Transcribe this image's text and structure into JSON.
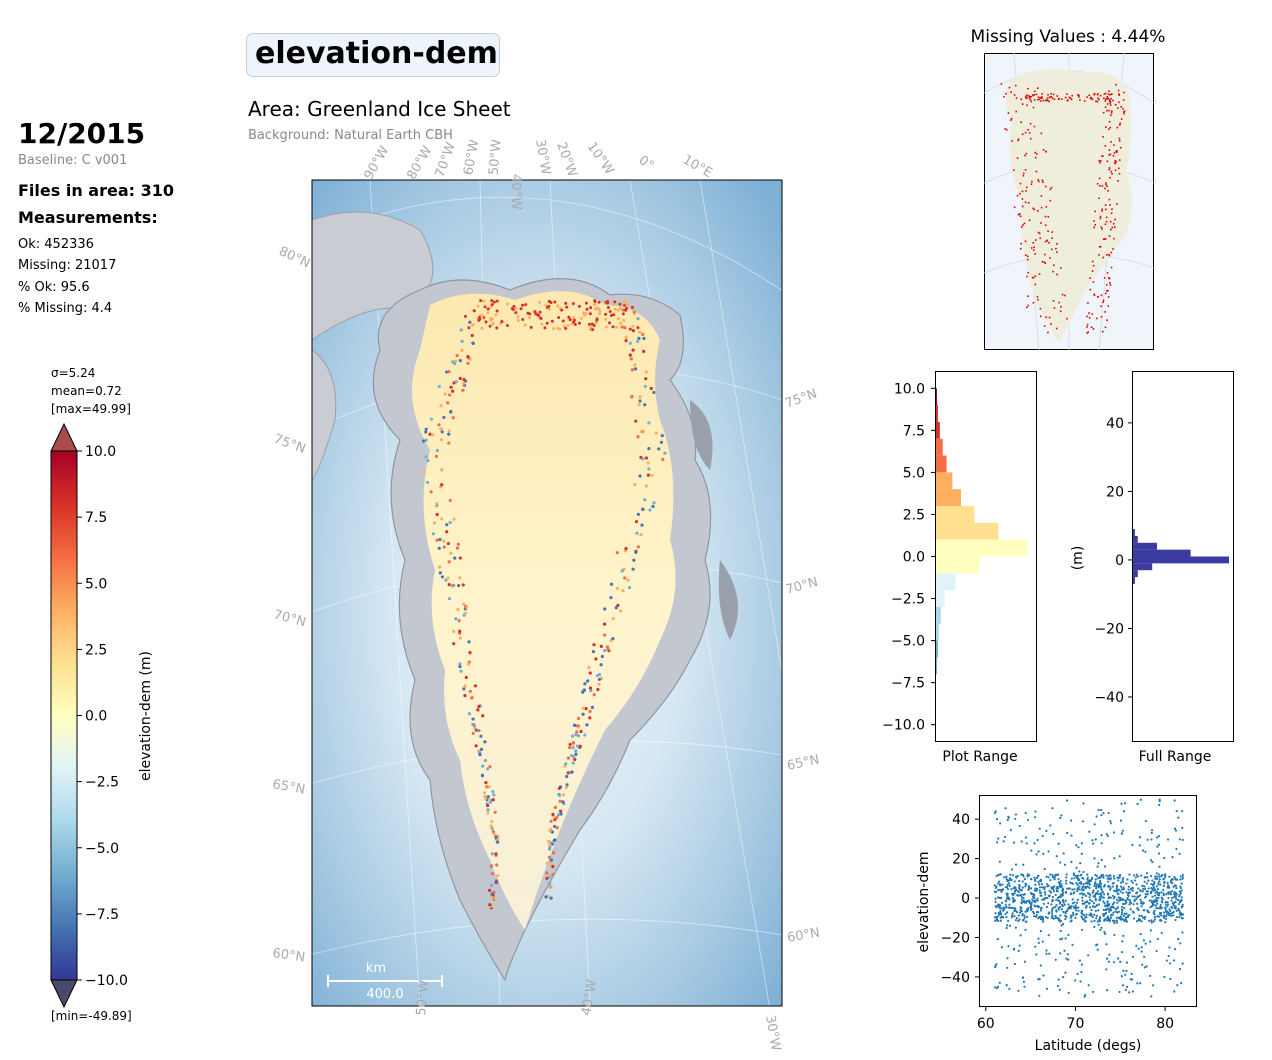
{
  "header": {
    "title": "elevation-dem",
    "date": "12/2015",
    "baseline": "Baseline: C v001",
    "files_in_area": "Files in area: 310",
    "measurements_label": "Measurements:",
    "stats": [
      "Ok: 452336",
      "Missing: 21017",
      "% Ok: 95.6",
      "% Missing: 4.4"
    ],
    "area": "Area: Greenland Ice Sheet",
    "background": "Background: Natural Earth CBH"
  },
  "colorbar": {
    "label": "elevation-dem (m)",
    "stats": [
      "σ=5.24",
      "mean=0.72",
      "[max=49.99]"
    ],
    "min_label": "[min=-49.89]",
    "ticks": [
      "10.0",
      "7.5",
      "5.0",
      "2.5",
      "0.0",
      "−2.5",
      "−5.0",
      "−7.5",
      "−10.0"
    ],
    "colors": [
      "#a50026",
      "#d73027",
      "#f46d43",
      "#fdae61",
      "#fee090",
      "#ffffbf",
      "#e0f3f8",
      "#abd9e9",
      "#74add1",
      "#4575b4",
      "#313695"
    ]
  },
  "map": {
    "lon_top": [
      "90°W",
      "80°W",
      "70°W",
      "60°W",
      "50°W",
      "40°W",
      "30°W",
      "20°W",
      "10°W",
      "0°",
      "10°E"
    ],
    "lat_left": [
      "80°N",
      "75°N",
      "70°N",
      "65°N",
      "60°N"
    ],
    "lat_right": [
      "75°N",
      "70°N",
      "65°N",
      "60°N"
    ],
    "lon_bottom": [
      "50°W",
      "40°W",
      "30°W"
    ],
    "scale_unit": "km",
    "scale_value": "400.0"
  },
  "missing_map": {
    "title": "Missing Values : 4.44%"
  },
  "chart_data": [
    {
      "type": "bar",
      "orientation": "horizontal",
      "xlabel": "Plot Range",
      "ylabel": "",
      "ylim": [
        -11,
        11
      ],
      "yticks": [
        "10.0",
        "7.5",
        "5.0",
        "2.5",
        "0.0",
        "−2.5",
        "−5.0",
        "−7.5",
        "−10.0"
      ],
      "bins_center": [
        9.5,
        8.5,
        7.5,
        6.5,
        5.5,
        4.5,
        3.5,
        2.5,
        1.5,
        0.5,
        -0.5,
        -1.5,
        -2.5,
        -3.5,
        -4.5,
        -5.5,
        -6.5
      ],
      "relative_counts": [
        0.01,
        0.02,
        0.04,
        0.07,
        0.11,
        0.17,
        0.26,
        0.4,
        0.65,
        0.95,
        0.45,
        0.2,
        0.09,
        0.05,
        0.03,
        0.02,
        0.01
      ]
    },
    {
      "type": "bar",
      "orientation": "horizontal",
      "xlabel": "Full Range",
      "ylabel": "(m)",
      "ylim": [
        -53,
        55
      ],
      "yticks": [
        "40",
        "20",
        "0",
        "−20",
        "−40"
      ],
      "bins_center": [
        8,
        6,
        4,
        2,
        0,
        -2,
        -4,
        -6
      ],
      "relative_counts": [
        0.02,
        0.05,
        0.25,
        0.6,
        1.0,
        0.2,
        0.05,
        0.02
      ],
      "color": "#3b3ba0"
    },
    {
      "type": "scatter",
      "xlabel": "Latitude (degs)",
      "ylabel": "elevation-dem",
      "xlim": [
        59.3,
        83.5
      ],
      "ylim": [
        -55,
        52
      ],
      "xticks": [
        "60",
        "70",
        "80"
      ],
      "yticks": [
        "40",
        "20",
        "0",
        "−20",
        "−40"
      ],
      "x_range": [
        61,
        82
      ],
      "y_core": [
        -12,
        12
      ],
      "y_full": [
        -50,
        50
      ],
      "color": "#1f77b4"
    }
  ]
}
